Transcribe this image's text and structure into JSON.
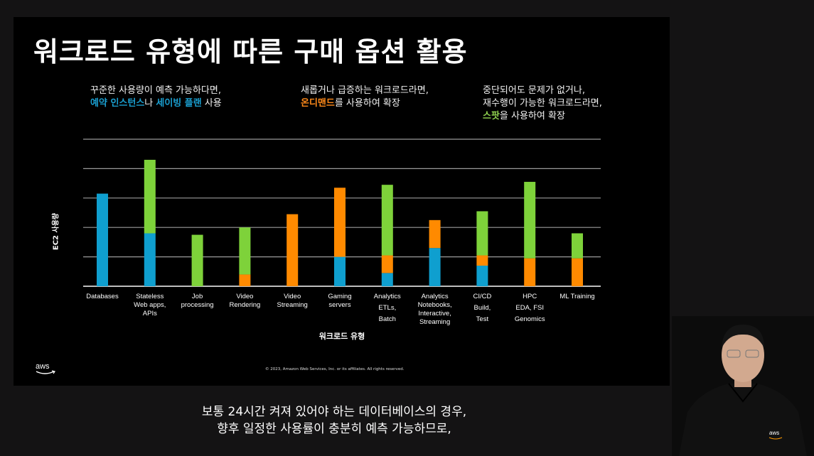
{
  "slide": {
    "title": "워크로드 유형에 따른 구매 옵션 활용",
    "notes": [
      {
        "line1": "꾸준한 사용량이 예측 가능하다면,",
        "line2_parts": [
          {
            "text": "예약 인스턴스",
            "color": "#1a9fd0"
          },
          {
            "text": "나 ",
            "color": "#f2f2f2"
          },
          {
            "text": "세이빙 플랜",
            "color": "#1a9fd0"
          },
          {
            "text": " 사용",
            "color": "#f2f2f2"
          }
        ]
      },
      {
        "line1": "새롭거나 급증하는 워크로드라면,",
        "line2_parts": [
          {
            "text": "온디맨드",
            "color": "#ff8a1a"
          },
          {
            "text": "를 사용하여 확장",
            "color": "#f2f2f2"
          }
        ]
      },
      {
        "line1": "중단되어도 문제가 없거나,",
        "line2": "재수행이 가능한 워크로드라면,",
        "line3_parts": [
          {
            "text": "스팟",
            "color": "#8fd14f"
          },
          {
            "text": "을 사용하여 확장",
            "color": "#f2f2f2"
          }
        ]
      }
    ],
    "copyright": "© 2023, Amazon Web Services, Inc. or its affiliates. All rights reserved.",
    "logo": "aws-logo"
  },
  "subtitles": [
    "보통 24시간 켜져 있어야 하는 데이터베이스의 경우,",
    "향후 일정한 사용률이 충분히 예측 가능하므로,"
  ],
  "presenter": {
    "shirt_logo": "aws"
  },
  "chart_data": {
    "type": "bar",
    "stacked": true,
    "title": "",
    "xlabel": "워크로드 유형",
    "ylabel": "EC2 사용량",
    "ylim": [
      0,
      5
    ],
    "grid": true,
    "y_ticks_shown": false,
    "categories": [
      [
        "Databases"
      ],
      [
        "Stateless",
        "Web apps,",
        "APIs"
      ],
      [
        "Job",
        "processing"
      ],
      [
        "Video",
        "Rendering"
      ],
      [
        "Video",
        "Streaming"
      ],
      [
        "Gaming",
        "servers"
      ],
      [
        "Analytics",
        "ETLs,",
        "Batch"
      ],
      [
        "Analytics",
        "Notebooks,",
        "Interactive,",
        "Streaming"
      ],
      [
        "CI/CD",
        "Build,",
        "Test"
      ],
      [
        "HPC",
        "EDA, FSI",
        "Genomics"
      ],
      [
        "ML Training"
      ]
    ],
    "series": [
      {
        "name": "Reserved / Savings Plans",
        "color": "#0f9fcf",
        "values": [
          3.15,
          1.8,
          0,
          0,
          0,
          1.0,
          0.45,
          1.3,
          0.7,
          0,
          0
        ]
      },
      {
        "name": "On-Demand",
        "color": "#ff8a00",
        "values": [
          0,
          0,
          0,
          0.4,
          2.45,
          2.35,
          0.6,
          0.95,
          0.35,
          0.95,
          0.95
        ]
      },
      {
        "name": "Spot",
        "color": "#7ed23a",
        "values": [
          0,
          2.5,
          1.75,
          1.6,
          0,
          0,
          2.4,
          0,
          1.5,
          2.6,
          0.85
        ]
      }
    ]
  }
}
